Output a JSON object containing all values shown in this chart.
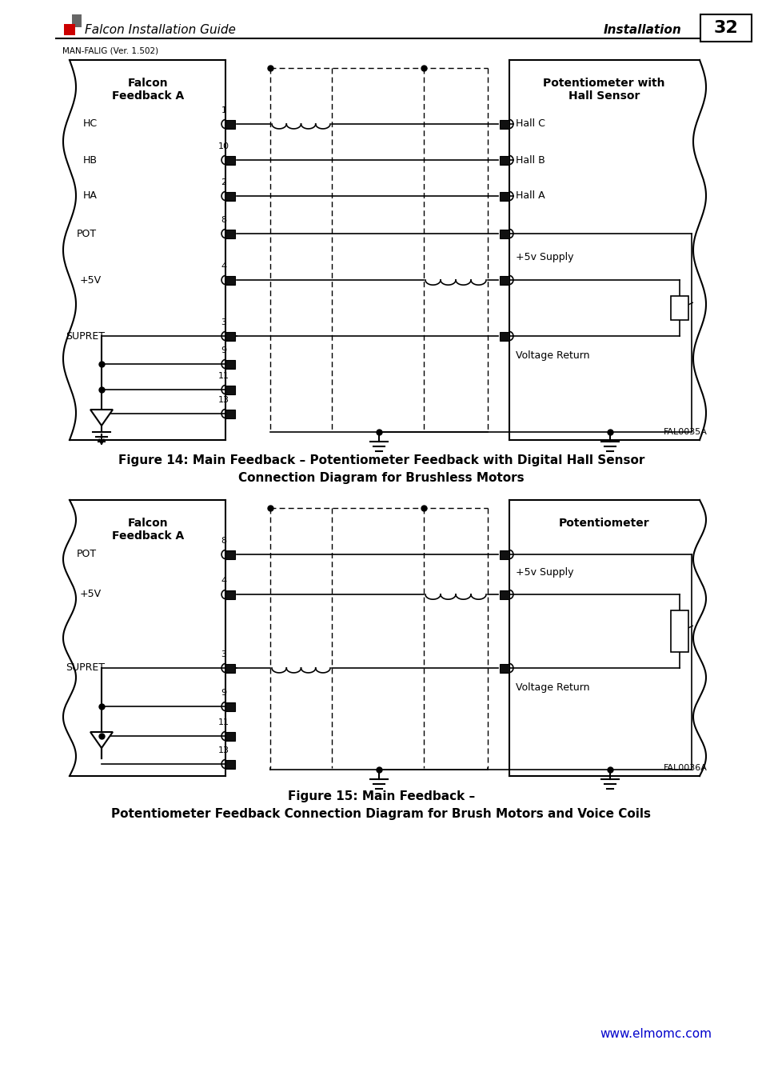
{
  "page_title": "Falcon Installation Guide",
  "page_right_title": "Installation",
  "page_number": "32",
  "version_text": "MAN-FALIG (Ver. 1.502)",
  "website": "www.elmomc.com",
  "website_color": "#0000CC",
  "fig14_caption_line1": "Figure 14: Main Feedback – Potentiometer Feedback with Digital Hall Sensor",
  "fig14_caption_line2": "Connection Diagram for Brushless Motors",
  "fig15_caption_line1": "Figure 15: Main Feedback –",
  "fig15_caption_line2": "Potentiometer Feedback Connection Diagram for Brush Motors and Voice Coils",
  "bg_color": "#ffffff",
  "fill_color": "#111111",
  "fig14_label": "FAL0035A",
  "fig15_label": "FAL0036A",
  "logo_red": "#CC0000",
  "logo_gray": "#666666"
}
